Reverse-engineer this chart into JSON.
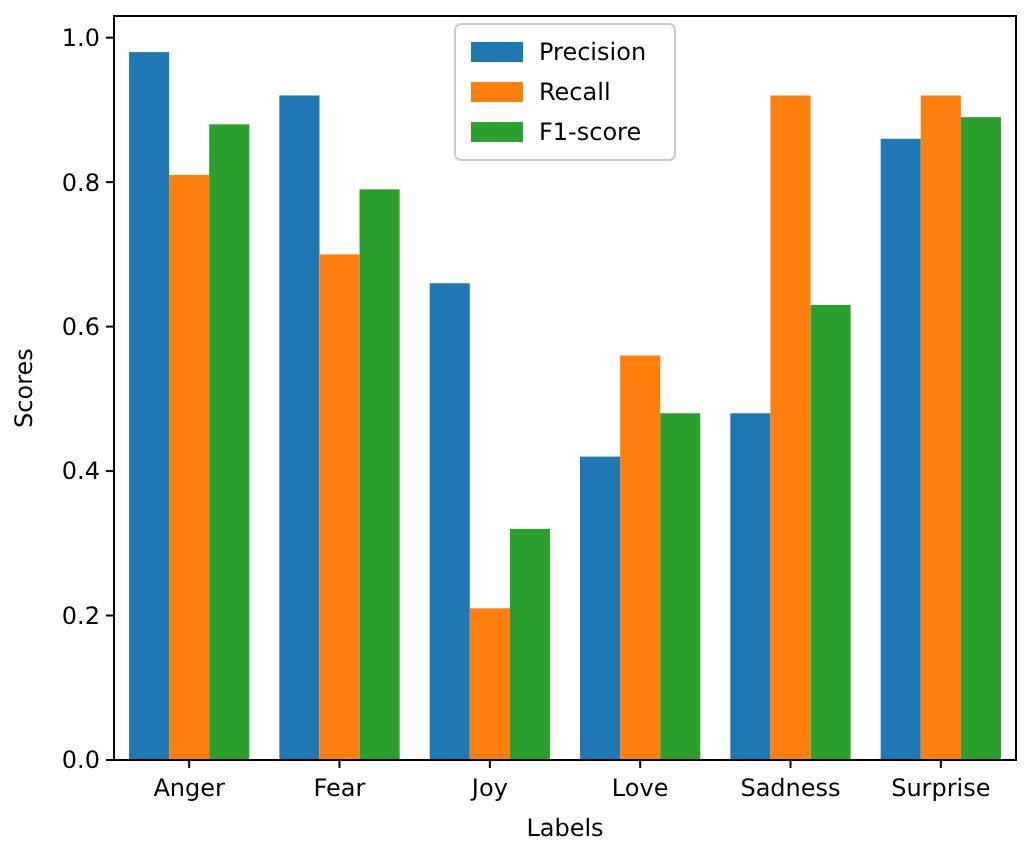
{
  "chart_data": {
    "type": "bar",
    "xlabel": "Labels",
    "ylabel": "Scores",
    "categories": [
      "Anger",
      "Fear",
      "Joy",
      "Love",
      "Sadness",
      "Surprise"
    ],
    "series": [
      {
        "name": "Precision",
        "color": "#1f77b4",
        "values": [
          0.98,
          0.92,
          0.66,
          0.42,
          0.48,
          0.86
        ]
      },
      {
        "name": "Recall",
        "color": "#ff7f0e",
        "values": [
          0.81,
          0.7,
          0.21,
          0.56,
          0.92,
          0.92
        ]
      },
      {
        "name": "F1-score",
        "color": "#2ca02c",
        "values": [
          0.88,
          0.79,
          0.32,
          0.48,
          0.63,
          0.89
        ]
      }
    ],
    "ylim": [
      0,
      1.03
    ],
    "yticks": [
      {
        "value": 0,
        "label": "0.0"
      },
      {
        "value": 0.2,
        "label": "0.2"
      },
      {
        "value": 0.4,
        "label": "0.4"
      },
      {
        "value": 0.6,
        "label": "0.6"
      },
      {
        "value": 0.8,
        "label": "0.8"
      },
      {
        "value": 1,
        "label": "1.0"
      }
    ],
    "legend": "top",
    "grid": false
  }
}
